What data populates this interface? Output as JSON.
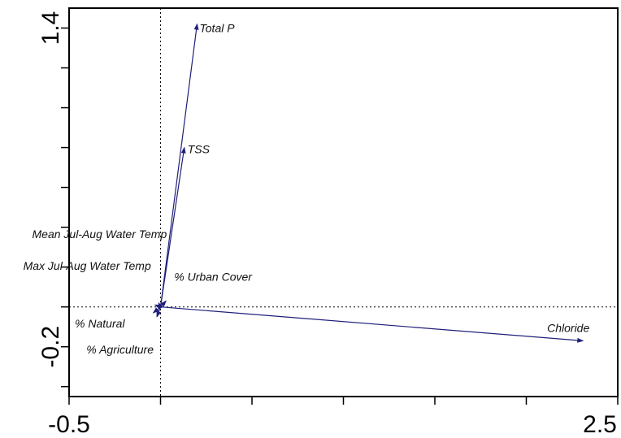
{
  "chart_data": {
    "type": "biplot",
    "title": "",
    "xlabel": "",
    "ylabel": "",
    "xlim": [
      -0.5,
      2.5
    ],
    "ylim": [
      -0.45,
      1.5
    ],
    "grid": false,
    "reference_lines": {
      "x": 0,
      "y": 0
    },
    "x_tick_labels": [
      "-0.5",
      "2.5"
    ],
    "y_tick_labels": [
      "-0.2",
      "1.4"
    ],
    "vectors": [
      {
        "name": "Total P",
        "x": 0.2,
        "y": 1.42
      },
      {
        "name": "TSS",
        "x": 0.13,
        "y": 0.8
      },
      {
        "name": "Chloride",
        "x": 2.31,
        "y": -0.17
      },
      {
        "name": "% Urban Cover",
        "x": 0.03,
        "y": 0.03
      },
      {
        "name": "Mean Jul-Aug Water Temp",
        "x": -0.01,
        "y": 0.02
      },
      {
        "name": "Max Jul-Aug Water Temp",
        "x": -0.03,
        "y": 0.01
      },
      {
        "name": "% Natural",
        "x": -0.04,
        "y": -0.03
      },
      {
        "name": "% Agriculture",
        "x": -0.02,
        "y": -0.05
      }
    ],
    "colors": {
      "vector": "#1f1f7a"
    }
  }
}
